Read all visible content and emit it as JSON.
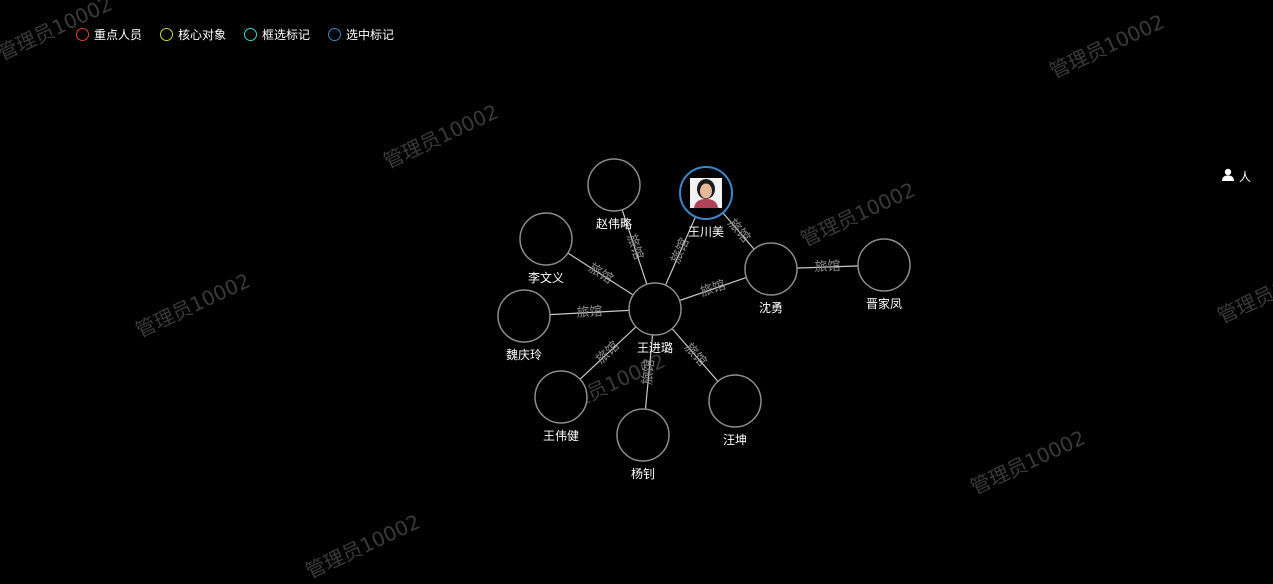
{
  "watermark_text": "管理员10002",
  "legend": [
    {
      "label": "重点人员",
      "color": "#e0452b"
    },
    {
      "label": "核心对象",
      "color": "#c9d840"
    },
    {
      "label": "框选标记",
      "color": "#38d6d0"
    },
    {
      "label": "选中标记",
      "color": "#3a86c8"
    }
  ],
  "right_filter": {
    "label": "人",
    "icon": "person-icon"
  },
  "graph": {
    "edge_label": "旅馆",
    "nodes": [
      {
        "id": "wjl",
        "label": "王进璐",
        "selected": false,
        "photo": false
      },
      {
        "id": "zwl",
        "label": "赵伟略",
        "selected": false,
        "photo": false
      },
      {
        "id": "wcm",
        "label": "王川美",
        "selected": true,
        "photo": true
      },
      {
        "id": "lwy",
        "label": "李文义",
        "selected": false,
        "photo": false
      },
      {
        "id": "sy",
        "label": "沈勇",
        "selected": false,
        "photo": false
      },
      {
        "id": "jjf",
        "label": "晋家凤",
        "selected": false,
        "photo": false
      },
      {
        "id": "wql",
        "label": "魏庆玲",
        "selected": false,
        "photo": false
      },
      {
        "id": "wwj",
        "label": "王伟健",
        "selected": false,
        "photo": false
      },
      {
        "id": "yz",
        "label": "杨钊",
        "selected": false,
        "photo": false
      },
      {
        "id": "wk",
        "label": "汪坤",
        "selected": false,
        "photo": false
      }
    ],
    "edges": [
      {
        "from": "wjl",
        "to": "zwl",
        "label": "旅馆"
      },
      {
        "from": "wjl",
        "to": "wcm",
        "label": "旅馆"
      },
      {
        "from": "wjl",
        "to": "lwy",
        "label": "旅馆"
      },
      {
        "from": "wjl",
        "to": "sy",
        "label": "旅馆"
      },
      {
        "from": "wjl",
        "to": "wql",
        "label": "旅馆"
      },
      {
        "from": "wjl",
        "to": "wwj",
        "label": "旅馆"
      },
      {
        "from": "wjl",
        "to": "yz",
        "label": "旅馆"
      },
      {
        "from": "wjl",
        "to": "wk",
        "label": "旅馆"
      },
      {
        "from": "wcm",
        "to": "sy",
        "label": "旅馆"
      },
      {
        "from": "sy",
        "to": "jjf",
        "label": "旅馆"
      }
    ]
  }
}
